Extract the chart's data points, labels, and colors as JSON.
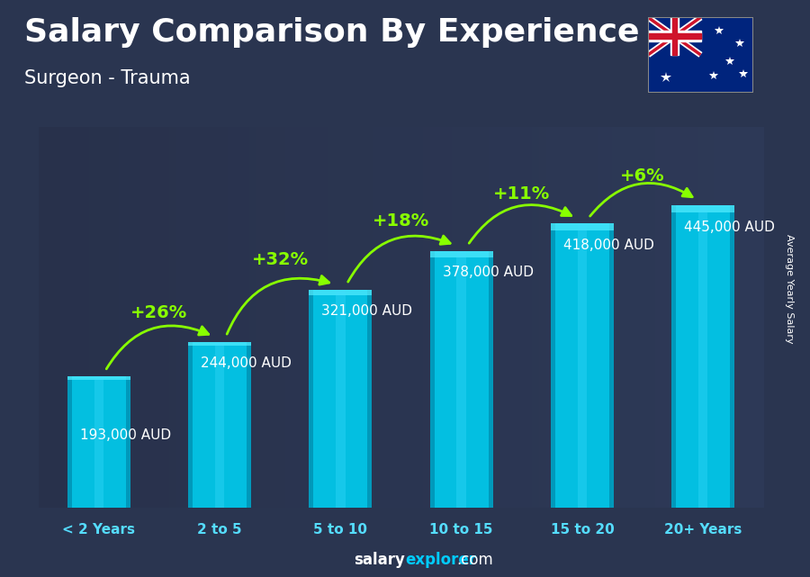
{
  "title": "Salary Comparison By Experience",
  "subtitle": "Surgeon - Trauma",
  "categories": [
    "< 2 Years",
    "2 to 5",
    "5 to 10",
    "10 to 15",
    "15 to 20",
    "20+ Years"
  ],
  "values": [
    193000,
    244000,
    321000,
    378000,
    418000,
    445000
  ],
  "labels": [
    "193,000 AUD",
    "244,000 AUD",
    "321,000 AUD",
    "378,000 AUD",
    "418,000 AUD",
    "445,000 AUD"
  ],
  "pct_changes": [
    "+26%",
    "+32%",
    "+18%",
    "+11%",
    "+6%"
  ],
  "bar_color_top": "#00DDFF",
  "bar_color_mid": "#00BBEE",
  "bar_color_dark": "#0099CC",
  "pct_color": "#88FF00",
  "label_color": "#FFFFFF",
  "title_color": "#FFFFFF",
  "subtitle_color": "#FFFFFF",
  "bg_color": "#2a3550",
  "ylabel": "Average Yearly Salary",
  "footer_salary": "salary",
  "footer_explorer": "explorer",
  "footer_com": ".com",
  "ylim": [
    0,
    560000
  ],
  "figsize": [
    9.0,
    6.41
  ],
  "dpi": 100,
  "title_fontsize": 26,
  "subtitle_fontsize": 15,
  "label_fontsize": 11,
  "pct_fontsize": 14,
  "xtick_fontsize": 11
}
